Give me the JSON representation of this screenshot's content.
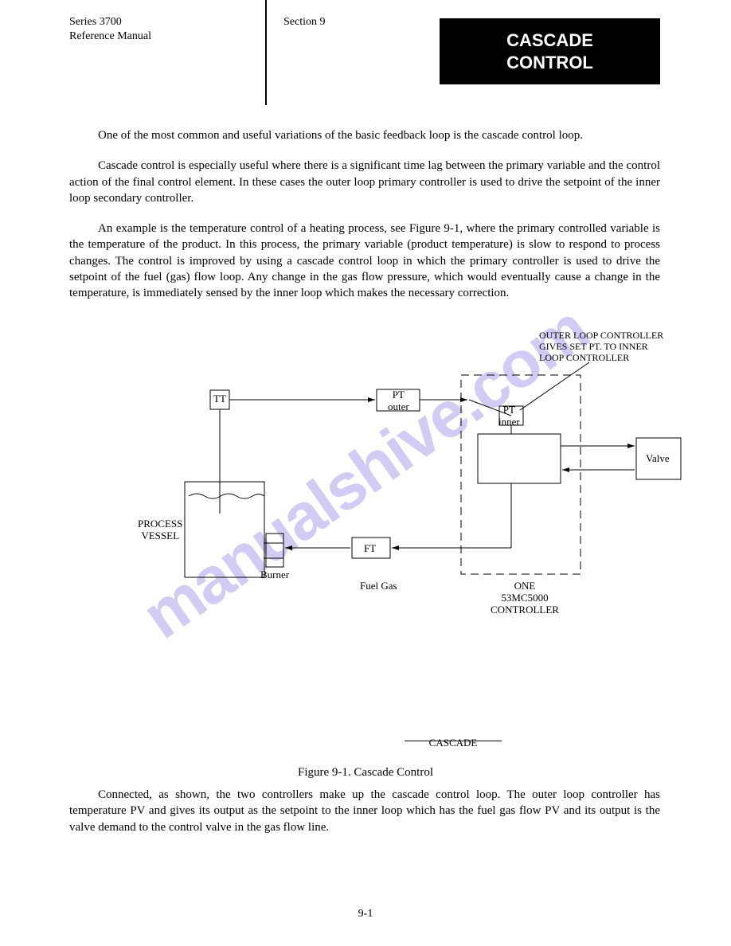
{
  "header": {
    "series": "Series 3700",
    "title": "Reference Manual",
    "section": "Section 9"
  },
  "banner": {
    "line1": "CASCADE",
    "line2": "CONTROL"
  },
  "paragraphs": {
    "intro": "One of the most common and useful variations of the basic feedback loop is the cascade control loop.",
    "p2": "Cascade control is especially useful where there is a significant time lag between the primary variable and the control action of the final control element.  In these cases the outer loop primary controller is used to drive the setpoint of the inner loop secondary controller.",
    "p3": "An example is the temperature control of a heating process, see Figure 9-1, where the primary controlled variable is the temperature of the product.  In this process, the primary variable (product temperature) is slow to respond to process changes.  The control is improved by using a cascade control loop in which the primary controller is used to drive the setpoint of the fuel (gas) flow loop. Any change in the gas flow pressure, which would eventually cause a change in the temperature, is immediately sensed by the inner loop which makes the necessary correction."
  },
  "diagram": {
    "labels": {
      "tt": "TT",
      "pt_outer": "PT\nouter",
      "pt_inner": "PT\ninner",
      "process_vessel": "PROCESS\nVESSEL",
      "burner": "Burner",
      "ft": "FT",
      "valve": "Valve",
      "fuel_gas": "Fuel Gas",
      "outer_loop_note": "OUTER LOOP CONTROLLER\nGIVES SET PT. TO INNER\nLOOP CONTROLLER",
      "one_controller": "ONE\n53MC5000\nCONTROLLER"
    },
    "colors": {
      "stroke": "#000000",
      "text": "#000000"
    }
  },
  "separator_title": "CASCADE",
  "caption": "Figure 9-1.  Cascade Control",
  "connected": "Connected, as shown, the two controllers make up the cascade control loop.  The outer loop controller has temperature PV and gives its output as the setpoint to the inner loop which has the fuel gas flow PV and its output is the valve demand to the control valve in the gas flow line.",
  "footer": "9-1",
  "watermark": "manualshive.com"
}
